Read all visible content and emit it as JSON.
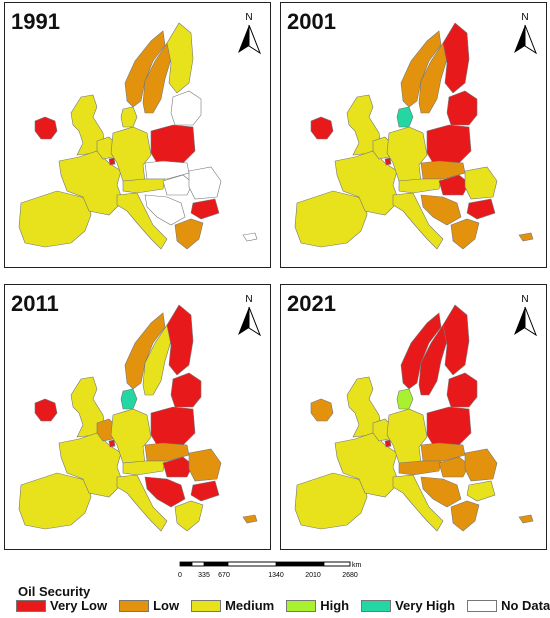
{
  "colors": {
    "very_low": "#e8191b",
    "low": "#e3920d",
    "medium": "#e7e21b",
    "high": "#a8f030",
    "very_high": "#23d6a2",
    "no_data": "#ffffff",
    "outline": "#777777"
  },
  "panels": [
    {
      "year": "1991",
      "regions": {
        "ireland": "very_low",
        "uk": "medium",
        "iberia": "medium",
        "france": "medium",
        "benelux": "medium",
        "luxembourg": "very_low",
        "denmark": "medium",
        "germany": "medium",
        "norway": "low",
        "sweden": "low",
        "finland": "medium",
        "baltics": "no_data",
        "poland": "very_low",
        "czech_slovakia": "no_data",
        "austria": "medium",
        "hungary": "no_data",
        "romania": "no_data",
        "bulgaria": "very_low",
        "italy": "medium",
        "balkans": "no_data",
        "greece": "low",
        "cyprus": "no_data"
      }
    },
    {
      "year": "2001",
      "regions": {
        "ireland": "very_low",
        "uk": "medium",
        "iberia": "medium",
        "france": "medium",
        "benelux": "medium",
        "luxembourg": "very_low",
        "denmark": "very_high",
        "germany": "medium",
        "norway": "low",
        "sweden": "low",
        "finland": "very_low",
        "baltics": "very_low",
        "poland": "very_low",
        "czech_slovakia": "low",
        "austria": "medium",
        "hungary": "very_low",
        "romania": "medium",
        "bulgaria": "very_low",
        "italy": "medium",
        "balkans": "low",
        "greece": "low",
        "cyprus": "low"
      }
    },
    {
      "year": "2011",
      "regions": {
        "ireland": "very_low",
        "uk": "medium",
        "iberia": "medium",
        "france": "medium",
        "benelux": "low",
        "luxembourg": "very_low",
        "denmark": "very_high",
        "germany": "medium",
        "norway": "low",
        "sweden": "medium",
        "finland": "very_low",
        "baltics": "very_low",
        "poland": "very_low",
        "czech_slovakia": "low",
        "austria": "medium",
        "hungary": "very_low",
        "romania": "low",
        "bulgaria": "very_low",
        "italy": "medium",
        "balkans": "very_low",
        "greece": "medium",
        "cyprus": "low"
      }
    },
    {
      "year": "2021",
      "regions": {
        "ireland": "low",
        "uk": "medium",
        "iberia": "medium",
        "france": "medium",
        "benelux": "medium",
        "luxembourg": "very_low",
        "denmark": "high",
        "germany": "medium",
        "norway": "very_low",
        "sweden": "very_low",
        "finland": "very_low",
        "baltics": "very_low",
        "poland": "very_low",
        "czech_slovakia": "low",
        "austria": "low",
        "hungary": "low",
        "romania": "low",
        "bulgaria": "medium",
        "italy": "medium",
        "balkans": "low",
        "greece": "low",
        "cyprus": "low"
      }
    }
  ],
  "scale": {
    "ticks": [
      "0",
      "335",
      "670",
      "1340",
      "2010",
      "2680"
    ],
    "unit": "km"
  },
  "north_label": "N",
  "legend": {
    "title": "Oil Security",
    "items": [
      {
        "label": "Very Low",
        "class": "very_low"
      },
      {
        "label": "Low",
        "class": "low"
      },
      {
        "label": "Medium",
        "class": "medium"
      },
      {
        "label": "High",
        "class": "high"
      },
      {
        "label": "Very High",
        "class": "very_high"
      },
      {
        "label": "No Data",
        "class": "no_data"
      }
    ]
  }
}
